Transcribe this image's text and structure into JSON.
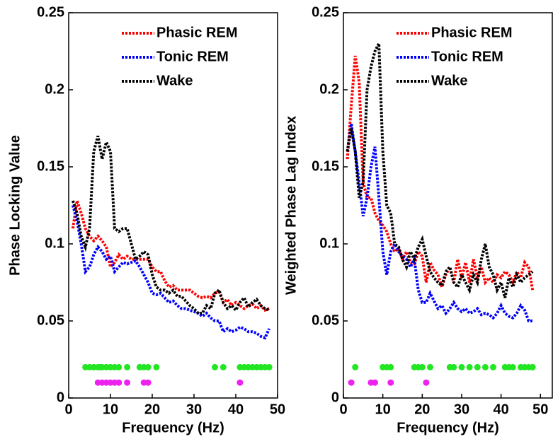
{
  "chart_data": [
    {
      "type": "line",
      "xlabel": "Frequency (Hz)",
      "ylabel": "Phase Locking Value",
      "xlim": [
        0,
        50
      ],
      "ylim": [
        0,
        0.25
      ],
      "xticks": [
        0,
        10,
        20,
        30,
        40,
        50
      ],
      "yticks": [
        0,
        0.05,
        0.1,
        0.15,
        0.2,
        0.25
      ],
      "legend": "upper right",
      "x": [
        1,
        2,
        3,
        4,
        5,
        6,
        7,
        8,
        9,
        10,
        11,
        12,
        13,
        14,
        15,
        16,
        17,
        18,
        19,
        20,
        21,
        22,
        23,
        24,
        25,
        26,
        27,
        28,
        29,
        30,
        31,
        32,
        33,
        34,
        35,
        36,
        37,
        38,
        39,
        40,
        41,
        42,
        43,
        44,
        45,
        46,
        47,
        48
      ],
      "series": [
        {
          "name": "Phasic REM",
          "color": "#ff0000",
          "values": [
            0.11,
            0.128,
            0.12,
            0.11,
            0.105,
            0.102,
            0.105,
            0.102,
            0.098,
            0.085,
            0.088,
            0.093,
            0.09,
            0.092,
            0.09,
            0.09,
            0.09,
            0.09,
            0.09,
            0.085,
            0.082,
            0.082,
            0.076,
            0.072,
            0.073,
            0.07,
            0.07,
            0.07,
            0.07,
            0.068,
            0.066,
            0.065,
            0.066,
            0.065,
            0.068,
            0.069,
            0.062,
            0.064,
            0.06,
            0.062,
            0.06,
            0.058,
            0.06,
            0.061,
            0.058,
            0.06,
            0.057,
            0.058
          ]
        },
        {
          "name": "Tonic REM",
          "color": "#0000ff",
          "values": [
            0.125,
            0.115,
            0.1,
            0.082,
            0.085,
            0.093,
            0.098,
            0.095,
            0.09,
            0.092,
            0.082,
            0.085,
            0.088,
            0.087,
            0.088,
            0.089,
            0.085,
            0.08,
            0.075,
            0.068,
            0.067,
            0.068,
            0.065,
            0.062,
            0.063,
            0.06,
            0.058,
            0.058,
            0.057,
            0.056,
            0.055,
            0.053,
            0.055,
            0.052,
            0.05,
            0.05,
            0.043,
            0.045,
            0.043,
            0.044,
            0.046,
            0.045,
            0.043,
            0.043,
            0.042,
            0.04,
            0.039,
            0.045
          ]
        },
        {
          "name": "Wake",
          "color": "#000000",
          "values": [
            0.128,
            0.12,
            0.105,
            0.098,
            0.11,
            0.16,
            0.17,
            0.155,
            0.166,
            0.16,
            0.11,
            0.108,
            0.11,
            0.11,
            0.1,
            0.09,
            0.092,
            0.095,
            0.093,
            0.08,
            0.072,
            0.07,
            0.07,
            0.068,
            0.07,
            0.066,
            0.066,
            0.063,
            0.06,
            0.058,
            0.055,
            0.055,
            0.06,
            0.058,
            0.068,
            0.07,
            0.062,
            0.058,
            0.06,
            0.057,
            0.062,
            0.065,
            0.059,
            0.062,
            0.064,
            0.06,
            0.058,
            0.057
          ]
        },
        {
          "type": "scatter",
          "color": "#22e622",
          "x": [
            4,
            5,
            6,
            7,
            7.5,
            8,
            9,
            10,
            11,
            12,
            14,
            17,
            18,
            19,
            21,
            35,
            37,
            41,
            42,
            43,
            44,
            45,
            46,
            47,
            48
          ],
          "values": [
            0.02,
            0.02,
            0.02,
            0.02,
            0.02,
            0.02,
            0.02,
            0.02,
            0.02,
            0.02,
            0.02,
            0.02,
            0.02,
            0.02,
            0.02,
            0.02,
            0.02,
            0.02,
            0.02,
            0.02,
            0.02,
            0.02,
            0.02,
            0.02,
            0.02
          ]
        },
        {
          "type": "scatter",
          "color": "#ee22ee",
          "x": [
            7,
            8,
            9,
            10,
            11,
            12,
            14,
            18,
            19,
            41
          ],
          "values": [
            0.01,
            0.01,
            0.01,
            0.01,
            0.01,
            0.01,
            0.01,
            0.01,
            0.01,
            0.01
          ]
        }
      ]
    },
    {
      "type": "line",
      "xlabel": "Frequency (Hz)",
      "ylabel": "Weighted Phase Lag Index",
      "xlim": [
        0,
        53
      ],
      "ylim": [
        0,
        0.25
      ],
      "xticks": [
        0,
        10,
        20,
        30,
        40,
        50
      ],
      "yticks": [
        0,
        0.05,
        0.1,
        0.15,
        0.2,
        0.25
      ],
      "legend": "upper right",
      "x": [
        1,
        2,
        3,
        4,
        5,
        6,
        7,
        8,
        9,
        10,
        11,
        12,
        13,
        14,
        15,
        16,
        17,
        18,
        19,
        20,
        21,
        22,
        23,
        24,
        25,
        26,
        27,
        28,
        29,
        30,
        31,
        32,
        33,
        34,
        35,
        36,
        37,
        38,
        39,
        40,
        41,
        42,
        43,
        44,
        45,
        46,
        47,
        48
      ],
      "series": [
        {
          "name": "Phasic REM",
          "color": "#ff0000",
          "values": [
            0.155,
            0.19,
            0.222,
            0.205,
            0.14,
            0.13,
            0.13,
            0.12,
            0.115,
            0.112,
            0.108,
            0.1,
            0.095,
            0.097,
            0.09,
            0.095,
            0.088,
            0.087,
            0.095,
            0.092,
            0.075,
            0.088,
            0.083,
            0.08,
            0.072,
            0.08,
            0.085,
            0.075,
            0.09,
            0.078,
            0.088,
            0.075,
            0.09,
            0.078,
            0.085,
            0.075,
            0.078,
            0.075,
            0.08,
            0.078,
            0.082,
            0.08,
            0.075,
            0.082,
            0.078,
            0.088,
            0.085,
            0.07
          ]
        },
        {
          "name": "Tonic REM",
          "color": "#0000ff",
          "values": [
            0.16,
            0.178,
            0.16,
            0.14,
            0.118,
            0.13,
            0.15,
            0.163,
            0.13,
            0.095,
            0.08,
            0.095,
            0.1,
            0.095,
            0.092,
            0.09,
            0.085,
            0.09,
            0.07,
            0.062,
            0.062,
            0.068,
            0.063,
            0.058,
            0.06,
            0.055,
            0.058,
            0.062,
            0.058,
            0.056,
            0.058,
            0.055,
            0.056,
            0.058,
            0.054,
            0.055,
            0.054,
            0.052,
            0.055,
            0.06,
            0.055,
            0.053,
            0.052,
            0.055,
            0.06,
            0.057,
            0.05,
            0.05
          ]
        },
        {
          "name": "Wake",
          "color": "#000000",
          "values": [
            0.16,
            0.175,
            0.16,
            0.13,
            0.14,
            0.2,
            0.215,
            0.225,
            0.23,
            0.16,
            0.125,
            0.12,
            0.1,
            0.098,
            0.09,
            0.085,
            0.095,
            0.09,
            0.098,
            0.103,
            0.092,
            0.082,
            0.078,
            0.075,
            0.073,
            0.082,
            0.085,
            0.075,
            0.072,
            0.08,
            0.075,
            0.07,
            0.08,
            0.075,
            0.09,
            0.1,
            0.085,
            0.08,
            0.07,
            0.075,
            0.065,
            0.078,
            0.072,
            0.08,
            0.075,
            0.078,
            0.08,
            0.082
          ]
        },
        {
          "type": "scatter",
          "color": "#22e622",
          "x": [
            3,
            10,
            11,
            12,
            18,
            19,
            20,
            22,
            27,
            28,
            30,
            32,
            34,
            36,
            38,
            41,
            42,
            43,
            45,
            46,
            47,
            48
          ],
          "values": [
            0.02,
            0.02,
            0.02,
            0.02,
            0.02,
            0.02,
            0.02,
            0.02,
            0.02,
            0.02,
            0.02,
            0.02,
            0.02,
            0.02,
            0.02,
            0.02,
            0.02,
            0.02,
            0.02,
            0.02,
            0.02,
            0.02
          ]
        },
        {
          "type": "scatter",
          "color": "#ee22ee",
          "x": [
            2,
            7,
            8,
            12,
            21
          ],
          "values": [
            0.01,
            0.01,
            0.01,
            0.01,
            0.01
          ]
        }
      ]
    }
  ]
}
